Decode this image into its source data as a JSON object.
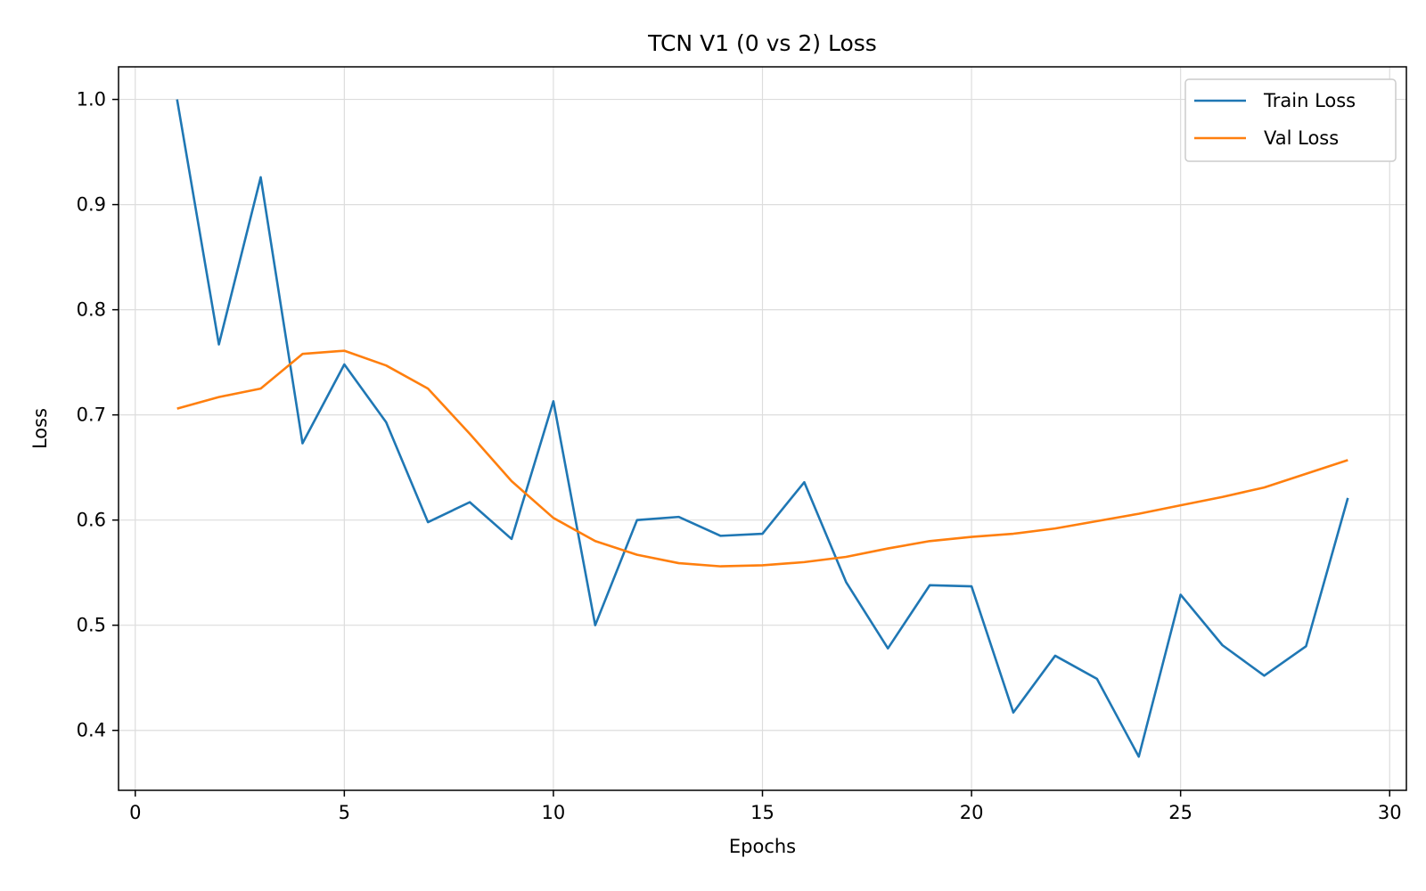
{
  "chart_data": {
    "type": "line",
    "title": "TCN V1 (0 vs 2) Loss",
    "xlabel": "Epochs",
    "ylabel": "Loss",
    "xlim": [
      -0.4,
      30.4
    ],
    "ylim": [
      0.343,
      1.031
    ],
    "xticks": [
      0,
      5,
      10,
      15,
      20,
      25,
      30
    ],
    "xtick_labels": [
      "0",
      "5",
      "10",
      "15",
      "20",
      "25",
      "30"
    ],
    "yticks": [
      0.4,
      0.5,
      0.6,
      0.7,
      0.8,
      0.9,
      1.0
    ],
    "ytick_labels": [
      "0.4",
      "0.5",
      "0.6",
      "0.7",
      "0.8",
      "0.9",
      "1.0"
    ],
    "grid": true,
    "legend_position": "top-right",
    "x": [
      1,
      2,
      3,
      4,
      5,
      6,
      7,
      8,
      9,
      10,
      11,
      12,
      13,
      14,
      15,
      16,
      17,
      18,
      19,
      20,
      21,
      22,
      23,
      24,
      25,
      26,
      27,
      28,
      29
    ],
    "series": [
      {
        "name": "Train Loss",
        "color": "#1f77b4",
        "values": [
          1.0,
          0.767,
          0.926,
          0.673,
          0.748,
          0.693,
          0.598,
          0.617,
          0.582,
          0.713,
          0.5,
          0.6,
          0.603,
          0.585,
          0.587,
          0.636,
          0.541,
          0.478,
          0.538,
          0.537,
          0.417,
          0.471,
          0.449,
          0.375,
          0.529,
          0.481,
          0.452,
          0.48,
          0.621
        ]
      },
      {
        "name": "Val Loss",
        "color": "#ff7f0e",
        "values": [
          0.706,
          0.717,
          0.725,
          0.758,
          0.761,
          0.747,
          0.725,
          0.682,
          0.637,
          0.602,
          0.58,
          0.567,
          0.559,
          0.556,
          0.557,
          0.56,
          0.565,
          0.573,
          0.58,
          0.584,
          0.587,
          0.592,
          0.599,
          0.606,
          0.614,
          0.622,
          0.631,
          0.644,
          0.657
        ]
      }
    ]
  }
}
